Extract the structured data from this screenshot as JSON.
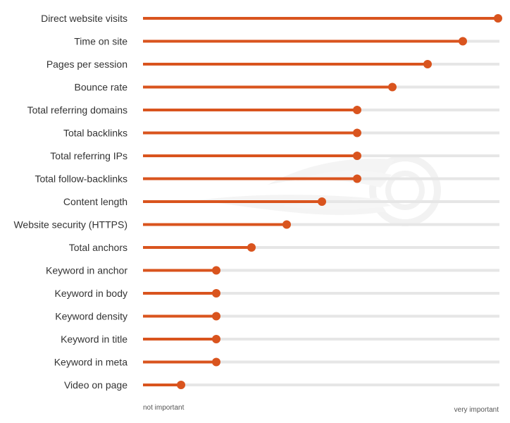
{
  "chart_data": {
    "type": "bar",
    "orientation": "horizontal",
    "style": "lollipop",
    "categories": [
      "Direct website visits",
      "Time on site",
      "Pages per session",
      "Bounce rate",
      "Total referring domains",
      "Total backlinks",
      "Total referring IPs",
      "Total follow-backlinks",
      "Content length",
      "Website security (HTTPS)",
      "Total anchors",
      "Keyword in anchor",
      "Keyword in body",
      "Keyword density",
      "Keyword in title",
      "Keyword in meta",
      "Video on page"
    ],
    "values": [
      1.0,
      0.9,
      0.8,
      0.7,
      0.6,
      0.6,
      0.6,
      0.6,
      0.5,
      0.4,
      0.3,
      0.2,
      0.2,
      0.2,
      0.2,
      0.2,
      0.1
    ],
    "xlim": [
      0,
      1
    ],
    "x_axis_min_label": "not important",
    "x_axis_max_label": "very important",
    "legend": "none",
    "grid": false,
    "colors": {
      "bar": "#d9541e",
      "track": "#e6e6e6",
      "watermark": "#ebebeb"
    }
  },
  "watermark_icon": "semrush-fireball-logo"
}
